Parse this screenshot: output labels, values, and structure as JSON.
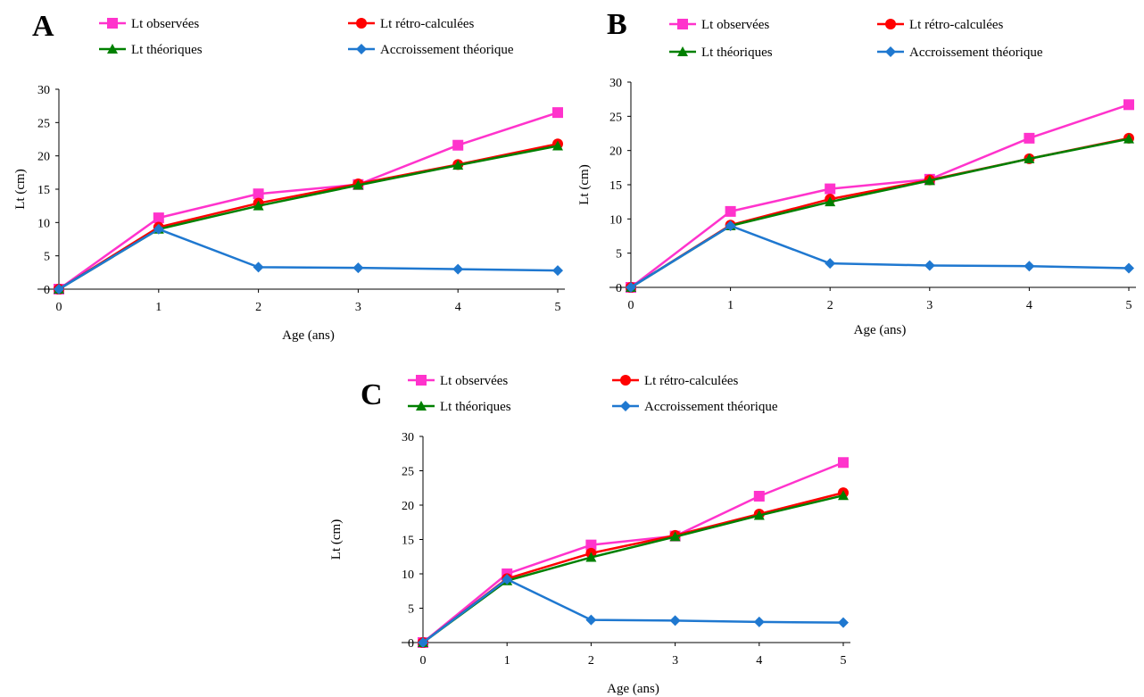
{
  "chart_data": [
    {
      "type": "line",
      "panel_label": "A",
      "categories": [
        "0",
        "1",
        "2",
        "3",
        "4",
        "5"
      ],
      "xlabel": "Age (ans)",
      "ylabel": "Lt (cm)",
      "ylim": [
        0,
        30
      ],
      "yticks": [
        "0",
        "5",
        "10",
        "15",
        "20",
        "25",
        "30"
      ],
      "grid": false,
      "legend": "top",
      "series": [
        {
          "name": "Lt observées",
          "values": [
            0,
            10.7,
            14.3,
            15.7,
            21.6,
            26.5
          ],
          "color": "#ff33cc",
          "marker": "square"
        },
        {
          "name": "Lt rétro-calculées",
          "values": [
            0,
            9.3,
            12.9,
            15.8,
            18.7,
            21.8
          ],
          "color": "#ff0000",
          "marker": "circle"
        },
        {
          "name": "Lt théoriques",
          "values": [
            0,
            9.0,
            12.5,
            15.6,
            18.6,
            21.5
          ],
          "color": "#008000",
          "marker": "triangle"
        },
        {
          "name": "Accroissement théorique",
          "values": [
            0,
            9.0,
            3.3,
            3.2,
            3.0,
            2.8
          ],
          "color": "#1f78d0",
          "marker": "diamond"
        }
      ]
    },
    {
      "type": "line",
      "panel_label": "B",
      "categories": [
        "0",
        "1",
        "2",
        "3",
        "4",
        "5"
      ],
      "xlabel": "Age (ans)",
      "ylabel": "Lt (cm)",
      "ylim": [
        0,
        30
      ],
      "yticks": [
        "0",
        "5",
        "10",
        "15",
        "20",
        "25",
        "30"
      ],
      "grid": false,
      "legend": "top",
      "series": [
        {
          "name": "Lt observées",
          "values": [
            0,
            11.1,
            14.4,
            15.8,
            21.8,
            26.7
          ],
          "color": "#ff33cc",
          "marker": "square"
        },
        {
          "name": "Lt rétro-calculées",
          "values": [
            0,
            9.1,
            12.9,
            15.7,
            18.8,
            21.8
          ],
          "color": "#ff0000",
          "marker": "circle"
        },
        {
          "name": "Lt théoriques",
          "values": [
            0,
            9.0,
            12.5,
            15.6,
            18.8,
            21.7
          ],
          "color": "#008000",
          "marker": "triangle"
        },
        {
          "name": "Accroissement théorique",
          "values": [
            0,
            9.0,
            3.5,
            3.2,
            3.1,
            2.8
          ],
          "color": "#1f78d0",
          "marker": "diamond"
        }
      ]
    },
    {
      "type": "line",
      "panel_label": "C",
      "categories": [
        "0",
        "1",
        "2",
        "3",
        "4",
        "5"
      ],
      "xlabel": "Age (ans)",
      "ylabel": "Lt (cm)",
      "ylim": [
        0,
        30
      ],
      "yticks": [
        "0",
        "5",
        "10",
        "15",
        "20",
        "25",
        "30"
      ],
      "grid": false,
      "legend": "top",
      "series": [
        {
          "name": "Lt observées",
          "values": [
            0,
            10.0,
            14.2,
            15.5,
            21.3,
            26.2
          ],
          "color": "#ff33cc",
          "marker": "square"
        },
        {
          "name": "Lt rétro-calculées",
          "values": [
            0,
            9.3,
            13.0,
            15.6,
            18.7,
            21.8
          ],
          "color": "#ff0000",
          "marker": "circle"
        },
        {
          "name": "Lt théoriques",
          "values": [
            0,
            9.0,
            12.4,
            15.4,
            18.5,
            21.4
          ],
          "color": "#008000",
          "marker": "triangle"
        },
        {
          "name": "Accroissement théorique",
          "values": [
            0,
            9.2,
            3.3,
            3.2,
            3.0,
            2.9
          ],
          "color": "#1f78d0",
          "marker": "diamond"
        }
      ]
    }
  ]
}
